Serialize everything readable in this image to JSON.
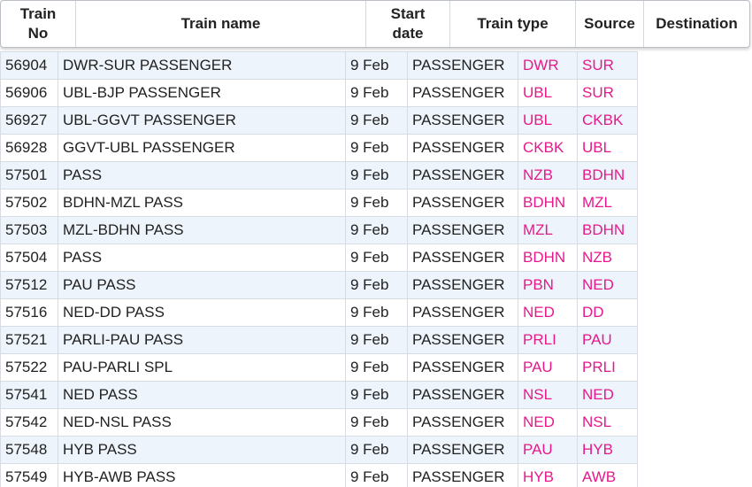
{
  "table": {
    "header": [
      "Train No",
      "Train name",
      "Start date",
      "Train type",
      "Source",
      "Destination"
    ],
    "rows": [
      [
        "56904",
        "DWR-SUR PASSENGER",
        "9 Feb",
        "PASSENGER",
        "DWR",
        "SUR"
      ],
      [
        "56906",
        "UBL-BJP PASSENGER",
        "9 Feb",
        "PASSENGER",
        "UBL",
        "SUR"
      ],
      [
        "56927",
        "UBL-GGVT PASSENGER",
        "9 Feb",
        "PASSENGER",
        "UBL",
        "CKBK"
      ],
      [
        "56928",
        "GGVT-UBL PASSENGER",
        "9 Feb",
        "PASSENGER",
        "CKBK",
        "UBL"
      ],
      [
        "57501",
        "PASS",
        "9 Feb",
        "PASSENGER",
        "NZB",
        "BDHN"
      ],
      [
        "57502",
        "BDHN-MZL PASS",
        "9 Feb",
        "PASSENGER",
        "BDHN",
        "MZL"
      ],
      [
        "57503",
        "MZL-BDHN PASS",
        "9 Feb",
        "PASSENGER",
        "MZL",
        "BDHN"
      ],
      [
        "57504",
        "PASS",
        "9 Feb",
        "PASSENGER",
        "BDHN",
        "NZB"
      ],
      [
        "57512",
        "PAU PASS",
        "9 Feb",
        "PASSENGER",
        "PBN",
        "NED"
      ],
      [
        "57516",
        "NED-DD PASS",
        "9 Feb",
        "PASSENGER",
        "NED",
        "DD"
      ],
      [
        "57521",
        "PARLI-PAU PASS",
        "9 Feb",
        "PASSENGER",
        "PRLI",
        "PAU"
      ],
      [
        "57522",
        "PAU-PARLI SPL",
        "9 Feb",
        "PASSENGER",
        "PAU",
        "PRLI"
      ],
      [
        "57541",
        "NED PASS",
        "9 Feb",
        "PASSENGER",
        "NSL",
        "NED"
      ],
      [
        "57542",
        "NED-NSL PASS",
        "9 Feb",
        "PASSENGER",
        "NED",
        "NSL"
      ],
      [
        "57548",
        "HYB PASS",
        "9 Feb",
        "PASSENGER",
        "PAU",
        "HYB"
      ],
      [
        "57549",
        "HYB-AWB PASS",
        "9 Feb",
        "PASSENGER",
        "HYB",
        "AWB"
      ]
    ]
  }
}
